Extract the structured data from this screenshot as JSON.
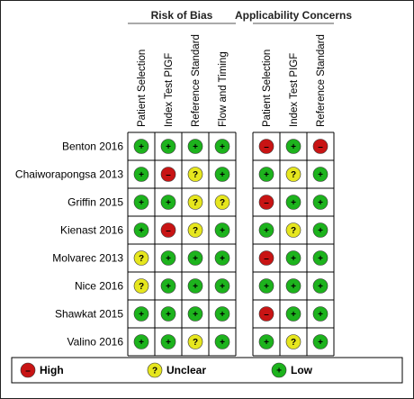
{
  "chart_data": {
    "type": "table",
    "groups": [
      {
        "title": "Risk of Bias",
        "columns": [
          "Patient Selection",
          "Index Test PIGF",
          "Reference Standard",
          "Flow and Timing"
        ]
      },
      {
        "title": "Applicability Concerns",
        "columns": [
          "Patient Selection",
          "Index Test PIGF",
          "Reference Standard"
        ]
      }
    ],
    "rows": [
      {
        "study": "Benton 2016",
        "values": [
          "low",
          "low",
          "low",
          "low",
          "high",
          "low",
          "high"
        ]
      },
      {
        "study": "Chaiworapongsa 2013",
        "values": [
          "low",
          "high",
          "unclear",
          "low",
          "low",
          "unclear",
          "low"
        ]
      },
      {
        "study": "Griffin 2015",
        "values": [
          "low",
          "low",
          "unclear",
          "unclear",
          "high",
          "low",
          "low"
        ]
      },
      {
        "study": "Kienast 2016",
        "values": [
          "low",
          "high",
          "unclear",
          "low",
          "low",
          "unclear",
          "low"
        ]
      },
      {
        "study": "Molvarec 2013",
        "values": [
          "unclear",
          "low",
          "low",
          "low",
          "high",
          "low",
          "low"
        ]
      },
      {
        "study": "Nice 2016",
        "values": [
          "unclear",
          "low",
          "low",
          "low",
          "low",
          "low",
          "low"
        ]
      },
      {
        "study": "Shawkat 2015",
        "values": [
          "low",
          "low",
          "low",
          "low",
          "high",
          "low",
          "low"
        ]
      },
      {
        "study": "Valino 2016",
        "values": [
          "low",
          "low",
          "unclear",
          "low",
          "low",
          "unclear",
          "low"
        ]
      }
    ],
    "levels": {
      "low": {
        "label": "Low",
        "symbol": "+",
        "color": "#1db31d"
      },
      "high": {
        "label": "High",
        "symbol": "–",
        "color": "#c81414"
      },
      "unclear": {
        "label": "Unclear",
        "symbol": "?",
        "color": "#e6e61e"
      }
    },
    "legend_order": [
      "high",
      "unclear",
      "low"
    ]
  }
}
